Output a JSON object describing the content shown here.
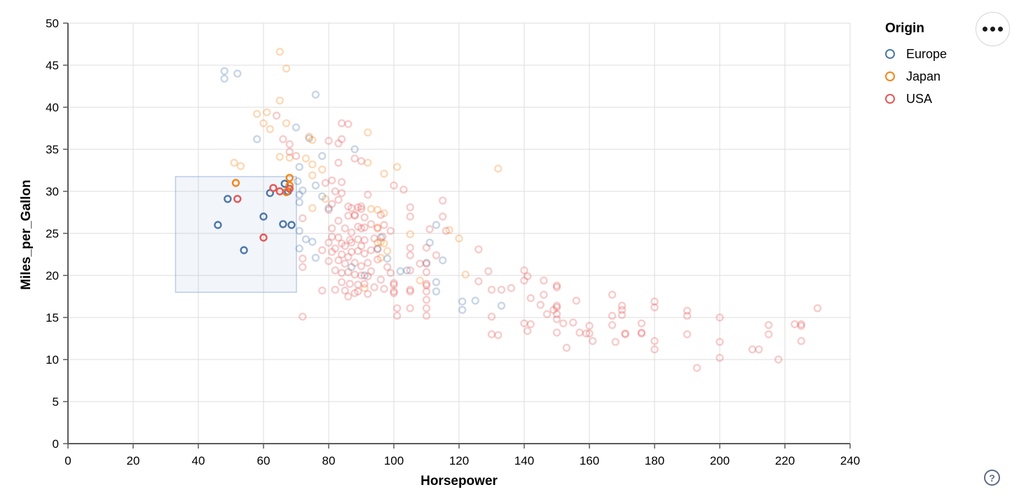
{
  "chart_data": {
    "type": "scatter",
    "xlabel": "Horsepower",
    "ylabel": "Miles_per_Gallon",
    "xlim": [
      0,
      240
    ],
    "ylim": [
      0,
      50
    ],
    "x_ticks": [
      0,
      20,
      40,
      60,
      80,
      100,
      120,
      140,
      160,
      180,
      200,
      220,
      240
    ],
    "y_ticks": [
      0,
      5,
      10,
      15,
      20,
      25,
      30,
      35,
      40,
      45,
      50
    ],
    "grid": true,
    "legend": {
      "title": "Origin",
      "entries": [
        {
          "label": "Europe",
          "color": "#4c78a8"
        },
        {
          "label": "Japan",
          "color": "#f58518"
        },
        {
          "label": "USA",
          "color": "#e45756"
        }
      ]
    },
    "colors": {
      "E": "#4c78a8",
      "J": "#f58518",
      "U": "#e45756"
    },
    "brush": {
      "x0": 33,
      "x1": 70.1,
      "y0": 18.0,
      "y1": 31.75,
      "fill": "rgba(100,140,200,0.085)",
      "stroke": "rgba(125,160,215,0.5)"
    },
    "unselected_opacity": 0.3,
    "points": [
      [
        46,
        26,
        "E"
      ],
      [
        49,
        29.1,
        "E"
      ],
      [
        54,
        23,
        "E"
      ],
      [
        60,
        27,
        "E"
      ],
      [
        62,
        29.8,
        "E"
      ],
      [
        66.5,
        30.9,
        "E"
      ],
      [
        67.5,
        30,
        "E"
      ],
      [
        66,
        26.1,
        "E"
      ],
      [
        68.6,
        26,
        "E"
      ],
      [
        51.5,
        31,
        "J"
      ],
      [
        68,
        31.6,
        "J"
      ],
      [
        68,
        30.7,
        "J"
      ],
      [
        67,
        29.9,
        "J"
      ],
      [
        52,
        29.1,
        "U"
      ],
      [
        60,
        24.5,
        "U"
      ],
      [
        63,
        30.4,
        "U"
      ],
      [
        65,
        30,
        "U"
      ],
      [
        68,
        30.3,
        "U"
      ],
      [
        48,
        44.3,
        "E"
      ],
      [
        48,
        43.4,
        "E"
      ],
      [
        52,
        44,
        "E"
      ],
      [
        76,
        41.5,
        "E"
      ],
      [
        70,
        37.6,
        "E"
      ],
      [
        58,
        36.2,
        "E"
      ],
      [
        74,
        36.3,
        "E"
      ],
      [
        78,
        34.2,
        "E"
      ],
      [
        88,
        35,
        "E"
      ],
      [
        113,
        26,
        "E"
      ],
      [
        71,
        29.6,
        "E"
      ],
      [
        71,
        28.7,
        "E"
      ],
      [
        78,
        29.4,
        "E"
      ],
      [
        71,
        25.3,
        "E"
      ],
      [
        71,
        23.2,
        "E"
      ],
      [
        73,
        24.3,
        "E"
      ],
      [
        75,
        24,
        "E"
      ],
      [
        76,
        22.1,
        "E"
      ],
      [
        80,
        28,
        "E"
      ],
      [
        96,
        24.5,
        "E"
      ],
      [
        98,
        22,
        "E"
      ],
      [
        87,
        21,
        "E"
      ],
      [
        91,
        20,
        "E"
      ],
      [
        102,
        20.5,
        "E"
      ],
      [
        104,
        20.6,
        "E"
      ],
      [
        111,
        23.9,
        "E"
      ],
      [
        115,
        21.8,
        "E"
      ],
      [
        113,
        19.2,
        "E"
      ],
      [
        113,
        18.1,
        "E"
      ],
      [
        121,
        16.9,
        "E"
      ],
      [
        121,
        15.9,
        "E"
      ],
      [
        125,
        17,
        "E"
      ],
      [
        133,
        16.4,
        "E"
      ],
      [
        71,
        32.9,
        "E"
      ],
      [
        76,
        30.7,
        "E"
      ],
      [
        70.5,
        31.2,
        "E"
      ],
      [
        72,
        30.1,
        "E"
      ],
      [
        110,
        21.5,
        "E"
      ],
      [
        95,
        23.2,
        "E"
      ],
      [
        65,
        46.6,
        "J"
      ],
      [
        67,
        44.6,
        "J"
      ],
      [
        65,
        40.8,
        "J"
      ],
      [
        58,
        39.2,
        "J"
      ],
      [
        60,
        38.1,
        "J"
      ],
      [
        61,
        39.4,
        "J"
      ],
      [
        62,
        37.4,
        "J"
      ],
      [
        67,
        38.1,
        "J"
      ],
      [
        65,
        34.1,
        "J"
      ],
      [
        68,
        34,
        "J"
      ],
      [
        51,
        33.4,
        "J"
      ],
      [
        53,
        33,
        "J"
      ],
      [
        92,
        33.4,
        "J"
      ],
      [
        97,
        32.1,
        "J"
      ],
      [
        101,
        32.9,
        "J"
      ],
      [
        92,
        37,
        "J"
      ],
      [
        132,
        32.7,
        "J"
      ],
      [
        117,
        25.4,
        "J"
      ],
      [
        120,
        24.4,
        "J"
      ],
      [
        122,
        20.1,
        "J"
      ],
      [
        75,
        28,
        "J"
      ],
      [
        79,
        29.1,
        "J"
      ],
      [
        93,
        27.9,
        "J"
      ],
      [
        95,
        27.8,
        "J"
      ],
      [
        97,
        27.4,
        "J"
      ],
      [
        95,
        25.7,
        "J"
      ],
      [
        105,
        24.9,
        "J"
      ],
      [
        91,
        18.5,
        "J"
      ],
      [
        108,
        19.4,
        "J"
      ],
      [
        95,
        23.9,
        "J"
      ],
      [
        97,
        23.8,
        "J"
      ],
      [
        98,
        22.9,
        "J"
      ],
      [
        96,
        22.1,
        "J"
      ],
      [
        96,
        24,
        "J"
      ],
      [
        74,
        36.5,
        "J"
      ],
      [
        75,
        36.1,
        "J"
      ],
      [
        73,
        33.9,
        "J"
      ],
      [
        75,
        33.2,
        "J"
      ],
      [
        75,
        31.9,
        "J"
      ],
      [
        78,
        32.6,
        "J"
      ],
      [
        64,
        39,
        "U"
      ],
      [
        66,
        36.2,
        "U"
      ],
      [
        68,
        35.6,
        "U"
      ],
      [
        68,
        34.7,
        "U"
      ],
      [
        70,
        34.2,
        "U"
      ],
      [
        84,
        38.1,
        "U"
      ],
      [
        86,
        38,
        "U"
      ],
      [
        80,
        36,
        "U"
      ],
      [
        84,
        36.2,
        "U"
      ],
      [
        83,
        35.7,
        "U"
      ],
      [
        88,
        33.9,
        "U"
      ],
      [
        90,
        33.6,
        "U"
      ],
      [
        83,
        33.4,
        "U"
      ],
      [
        81,
        31.3,
        "U"
      ],
      [
        84,
        31.1,
        "U"
      ],
      [
        79,
        31,
        "U"
      ],
      [
        82,
        30,
        "U"
      ],
      [
        84,
        29.8,
        "U"
      ],
      [
        83,
        29,
        "U"
      ],
      [
        81,
        28.5,
        "U"
      ],
      [
        86,
        28.2,
        "U"
      ],
      [
        89,
        28.1,
        "U"
      ],
      [
        90,
        28.2,
        "U"
      ],
      [
        90,
        27.9,
        "U"
      ],
      [
        87,
        28,
        "U"
      ],
      [
        86,
        27.1,
        "U"
      ],
      [
        88,
        27.2,
        "U"
      ],
      [
        88,
        27.1,
        "U"
      ],
      [
        91,
        26.9,
        "U"
      ],
      [
        93,
        26.1,
        "U"
      ],
      [
        83,
        26.5,
        "U"
      ],
      [
        81,
        25.6,
        "U"
      ],
      [
        85,
        25.6,
        "U"
      ],
      [
        90,
        25.6,
        "U"
      ],
      [
        95,
        25.6,
        "U"
      ],
      [
        89,
        25.8,
        "U"
      ],
      [
        91,
        25.7,
        "U"
      ],
      [
        87,
        25.1,
        "U"
      ],
      [
        96,
        27.2,
        "U"
      ],
      [
        92,
        29.6,
        "U"
      ],
      [
        72,
        26.8,
        "U"
      ],
      [
        80,
        27.8,
        "U"
      ],
      [
        78,
        23,
        "U"
      ],
      [
        72,
        22,
        "U"
      ],
      [
        72,
        21,
        "U"
      ],
      [
        78,
        18.2,
        "U"
      ],
      [
        72,
        15.1,
        "U"
      ],
      [
        103,
        30.2,
        "U"
      ],
      [
        100,
        30.7,
        "U"
      ],
      [
        105,
        28.1,
        "U"
      ],
      [
        105,
        27,
        "U"
      ],
      [
        115,
        28.9,
        "U"
      ],
      [
        115,
        27,
        "U"
      ],
      [
        111,
        25.5,
        "U"
      ],
      [
        116,
        25.3,
        "U"
      ],
      [
        80,
        23.9,
        "U"
      ],
      [
        82,
        23.2,
        "U"
      ],
      [
        84,
        23.8,
        "U"
      ],
      [
        86.5,
        24.2,
        "U"
      ],
      [
        89,
        24.3,
        "U"
      ],
      [
        91,
        24.2,
        "U"
      ],
      [
        94,
        24.4,
        "U"
      ],
      [
        96.5,
        24.6,
        "U"
      ],
      [
        84,
        22.5,
        "U"
      ],
      [
        87,
        22.8,
        "U"
      ],
      [
        89,
        22.9,
        "U"
      ],
      [
        91,
        22.6,
        "U"
      ],
      [
        83,
        21.8,
        "U"
      ],
      [
        85,
        21.4,
        "U"
      ],
      [
        88,
        21.5,
        "U"
      ],
      [
        90,
        21.1,
        "U"
      ],
      [
        82,
        20.6,
        "U"
      ],
      [
        84,
        20.3,
        "U"
      ],
      [
        86,
        20.4,
        "U"
      ],
      [
        88,
        20.1,
        "U"
      ],
      [
        90,
        20,
        "U"
      ],
      [
        92,
        19.9,
        "U"
      ],
      [
        84,
        19.2,
        "U"
      ],
      [
        86.5,
        19,
        "U"
      ],
      [
        89,
        18.9,
        "U"
      ],
      [
        91,
        19,
        "U"
      ],
      [
        82,
        18.3,
        "U"
      ],
      [
        85,
        18.2,
        "U"
      ],
      [
        88,
        17.9,
        "U"
      ],
      [
        89,
        18.1,
        "U"
      ],
      [
        100,
        19.1,
        "U"
      ],
      [
        100,
        18.9,
        "U"
      ],
      [
        100,
        18.1,
        "U"
      ],
      [
        100,
        17.9,
        "U"
      ],
      [
        110,
        19,
        "U"
      ],
      [
        110,
        18.8,
        "U"
      ],
      [
        105,
        18.3,
        "U"
      ],
      [
        105,
        18.1,
        "U"
      ],
      [
        110,
        21.4,
        "U"
      ],
      [
        95,
        23.1,
        "U"
      ],
      [
        105,
        23.3,
        "U"
      ],
      [
        105,
        22.4,
        "U"
      ],
      [
        108,
        21.4,
        "U"
      ],
      [
        105,
        20.6,
        "U"
      ],
      [
        110,
        23.3,
        "U"
      ],
      [
        113,
        22.4,
        "U"
      ],
      [
        110,
        20.4,
        "U"
      ],
      [
        110,
        18.1,
        "U"
      ],
      [
        110,
        17.1,
        "U"
      ],
      [
        110,
        16.1,
        "U"
      ],
      [
        105,
        16.1,
        "U"
      ],
      [
        101,
        16.1,
        "U"
      ],
      [
        101,
        15.2,
        "U"
      ],
      [
        110,
        15.2,
        "U"
      ],
      [
        126,
        23.1,
        "U"
      ],
      [
        126,
        19.3,
        "U"
      ],
      [
        130,
        18.3,
        "U"
      ],
      [
        133,
        18.3,
        "U"
      ],
      [
        136,
        18.5,
        "U"
      ],
      [
        130,
        15.1,
        "U"
      ],
      [
        130,
        13,
        "U"
      ],
      [
        132,
        12.9,
        "U"
      ],
      [
        140,
        20.6,
        "U"
      ],
      [
        141,
        19.9,
        "U"
      ],
      [
        140,
        19.4,
        "U"
      ],
      [
        142,
        17.3,
        "U"
      ],
      [
        140,
        14.3,
        "U"
      ],
      [
        142,
        14.2,
        "U"
      ],
      [
        141,
        13.4,
        "U"
      ],
      [
        146,
        19.4,
        "U"
      ],
      [
        146,
        17.7,
        "U"
      ],
      [
        147,
        15.4,
        "U"
      ],
      [
        150,
        18.8,
        "U"
      ],
      [
        150,
        18.6,
        "U"
      ],
      [
        150,
        16.4,
        "U"
      ],
      [
        150,
        16.2,
        "U"
      ],
      [
        150,
        15.4,
        "U"
      ],
      [
        150,
        14.8,
        "U"
      ],
      [
        150,
        13.2,
        "U"
      ],
      [
        152,
        14.3,
        "U"
      ],
      [
        155,
        14.4,
        "U"
      ],
      [
        156,
        17,
        "U"
      ],
      [
        157,
        13.2,
        "U"
      ],
      [
        159,
        13.1,
        "U"
      ],
      [
        153,
        11.4,
        "U"
      ],
      [
        167,
        17.7,
        "U"
      ],
      [
        170,
        16.4,
        "U"
      ],
      [
        170,
        15.9,
        "U"
      ],
      [
        170,
        15.3,
        "U"
      ],
      [
        167,
        15.2,
        "U"
      ],
      [
        167,
        14.1,
        "U"
      ],
      [
        168,
        12.1,
        "U"
      ],
      [
        171,
        13.1,
        "U"
      ],
      [
        171,
        13,
        "U"
      ],
      [
        160,
        14,
        "U"
      ],
      [
        160,
        13.1,
        "U"
      ],
      [
        161,
        12.2,
        "U"
      ],
      [
        176,
        14.3,
        "U"
      ],
      [
        176,
        13.2,
        "U"
      ],
      [
        176,
        13.1,
        "U"
      ],
      [
        180,
        16.9,
        "U"
      ],
      [
        180,
        16.2,
        "U"
      ],
      [
        180,
        12.2,
        "U"
      ],
      [
        180,
        11.2,
        "U"
      ],
      [
        190,
        15.8,
        "U"
      ],
      [
        190,
        15.2,
        "U"
      ],
      [
        190,
        13,
        "U"
      ],
      [
        193,
        9,
        "U"
      ],
      [
        200,
        15,
        "U"
      ],
      [
        200,
        12.1,
        "U"
      ],
      [
        200,
        10.2,
        "U"
      ],
      [
        210,
        11.2,
        "U"
      ],
      [
        212,
        11.2,
        "U"
      ],
      [
        215,
        14.1,
        "U"
      ],
      [
        215,
        13,
        "U"
      ],
      [
        218,
        10,
        "U"
      ],
      [
        223,
        14.2,
        "U"
      ],
      [
        225,
        14.2,
        "U"
      ],
      [
        225,
        14,
        "U"
      ],
      [
        225,
        12.2,
        "U"
      ],
      [
        230,
        16.1,
        "U"
      ],
      [
        81,
        24.6,
        "U"
      ],
      [
        83,
        24.5,
        "U"
      ],
      [
        85,
        23.5,
        "U"
      ],
      [
        86,
        22.2,
        "U"
      ],
      [
        90,
        23.5,
        "U"
      ],
      [
        92,
        21.5,
        "U"
      ],
      [
        93,
        20.5,
        "U"
      ],
      [
        94,
        18.6,
        "U"
      ],
      [
        92,
        17.8,
        "U"
      ],
      [
        86,
        17.5,
        "U"
      ],
      [
        96,
        19.5,
        "U"
      ],
      [
        97,
        18.4,
        "U"
      ],
      [
        98,
        21,
        "U"
      ],
      [
        99,
        20.3,
        "U"
      ],
      [
        87,
        23.9,
        "U"
      ],
      [
        93,
        23,
        "U"
      ],
      [
        95,
        21.9,
        "U"
      ],
      [
        81,
        22.8,
        "U"
      ],
      [
        80,
        21.7,
        "U"
      ],
      [
        97,
        26,
        "U"
      ],
      [
        99,
        25.3,
        "U"
      ],
      [
        129,
        20.5,
        "U"
      ],
      [
        145,
        16.5,
        "U"
      ],
      [
        149,
        15.9,
        "U"
      ]
    ]
  },
  "ui": {
    "help_label": "?"
  }
}
